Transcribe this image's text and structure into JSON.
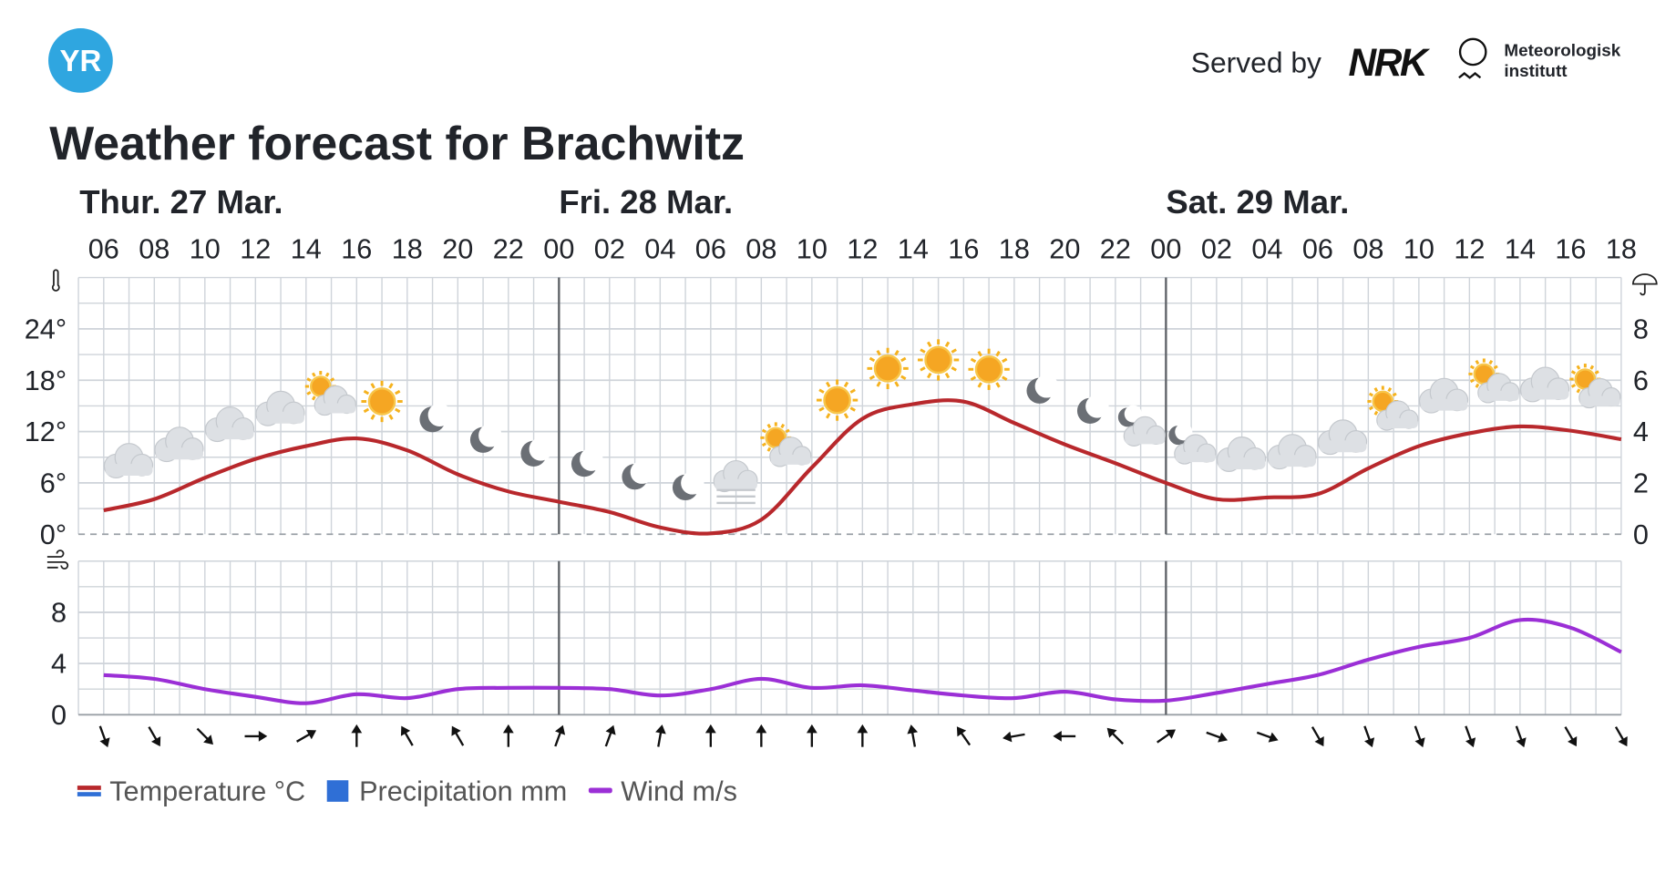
{
  "header": {
    "logo": "YR",
    "served_by": "Served by",
    "nrk": "NRK",
    "met_line1": "Meteorologisk",
    "met_line2": "institutt"
  },
  "chart_data": [
    {
      "type": "line",
      "title": "Weather forecast for Brachwitz",
      "days": [
        "Thur. 27 Mar.",
        "Fri. 28 Mar.",
        "Sat. 29 Mar."
      ],
      "categories": [
        "06",
        "08",
        "10",
        "12",
        "14",
        "16",
        "18",
        "20",
        "22",
        "00",
        "02",
        "04",
        "06",
        "08",
        "10",
        "12",
        "14",
        "16",
        "18",
        "20",
        "22",
        "00",
        "02",
        "04",
        "06",
        "08",
        "10",
        "12",
        "14",
        "16",
        "18"
      ],
      "series": [
        {
          "name": "Temperature °C",
          "color": "#b8282c",
          "values": [
            2.8,
            4.1,
            6.6,
            8.8,
            10.3,
            11.2,
            9.8,
            7.0,
            5.0,
            3.8,
            2.6,
            0.8,
            0.1,
            1.7,
            7.8,
            13.5,
            15.2,
            15.5,
            13.0,
            10.5,
            8.3,
            6.0,
            4.1,
            4.3,
            4.7,
            7.7,
            10.3,
            11.8,
            12.6,
            12.1,
            11.1
          ]
        },
        {
          "name": "Precipitation mm",
          "color": "#2f6fd6",
          "axis": "y2",
          "values": [
            0,
            0,
            0,
            0,
            0,
            0,
            0,
            0,
            0,
            0,
            0,
            0,
            0,
            0,
            0,
            0,
            0,
            0,
            0,
            0,
            0,
            0,
            0,
            0,
            0,
            0,
            0,
            0,
            0,
            0,
            0
          ]
        }
      ],
      "ylim": [
        0,
        30
      ],
      "yticks": [
        {
          "value": 0,
          "label": "0°"
        },
        {
          "value": 6,
          "label": "6°"
        },
        {
          "value": 12,
          "label": "12°"
        },
        {
          "value": 18,
          "label": "18°"
        },
        {
          "value": 24,
          "label": "24°"
        }
      ],
      "y2lim": [
        0,
        10
      ],
      "y2ticks": [
        0,
        2,
        4,
        6,
        8
      ],
      "grid": true
    },
    {
      "type": "line",
      "series": [
        {
          "name": "Wind m/s",
          "color": "#9b2fd6",
          "values": [
            3.1,
            2.8,
            2.0,
            1.4,
            0.9,
            1.6,
            1.3,
            2.0,
            2.1,
            2.1,
            2.0,
            1.5,
            2.0,
            2.8,
            2.1,
            2.3,
            1.9,
            1.5,
            1.3,
            1.8,
            1.2,
            1.1,
            1.7,
            2.4,
            3.1,
            4.3,
            5.3,
            6.0,
            7.4,
            6.8,
            4.9
          ]
        }
      ],
      "ylim": [
        0,
        12
      ],
      "yticks": [
        0,
        4,
        8
      ],
      "grid": true
    }
  ]
}
